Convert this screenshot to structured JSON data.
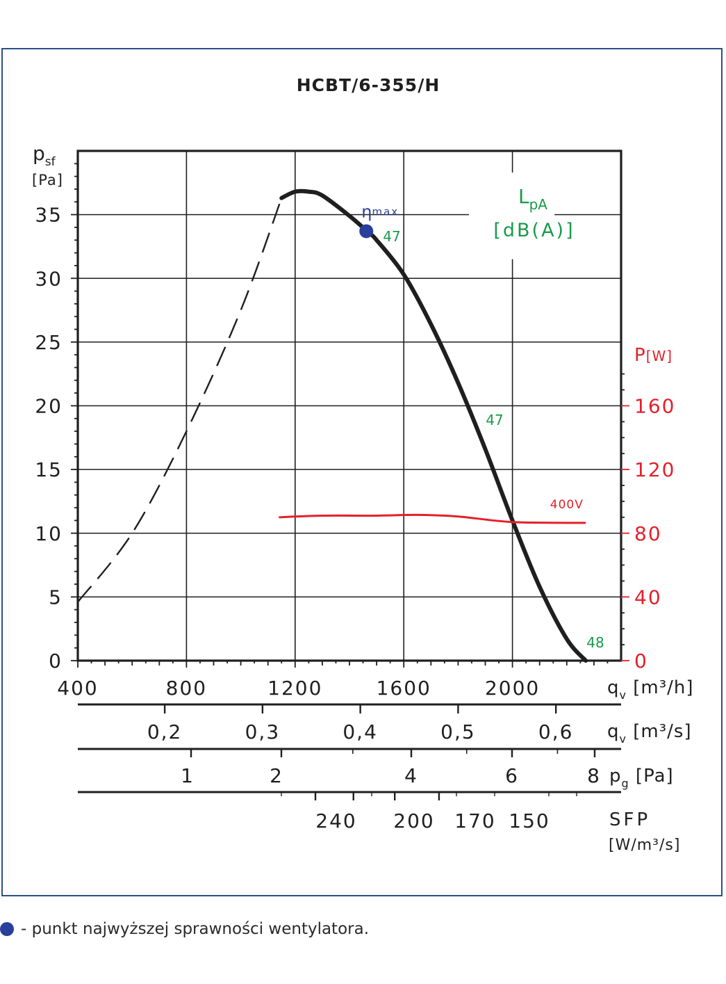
{
  "chart_data": {
    "type": "line",
    "title": "HCBT/6-355/H",
    "x_axis": {
      "label": "q",
      "label_sub": "v",
      "unit": "[m³/h]",
      "range": [
        400,
        2400
      ],
      "ticks": [
        400,
        800,
        1200,
        1600,
        2000
      ],
      "tick_labels": [
        "400",
        "800",
        "1200",
        "1600",
        "2000"
      ]
    },
    "y_axis_left": {
      "label": "p",
      "label_sub": "sf",
      "unit": "[Pa]",
      "range": [
        0,
        40
      ],
      "ticks": [
        0,
        5,
        10,
        15,
        20,
        25,
        30,
        35
      ],
      "tick_labels": [
        "0",
        "5",
        "10",
        "15",
        "20",
        "25",
        "30",
        "35"
      ]
    },
    "y_axis_right": {
      "label": "P",
      "unit": "[W]",
      "range": [
        0,
        320
      ],
      "ticks": [
        0,
        40,
        80,
        120,
        160
      ],
      "tick_labels": [
        "0",
        "40",
        "80",
        "120",
        "160"
      ]
    },
    "secondary_scales": [
      {
        "label": "q",
        "label_sub": "v",
        "unit": "[m³/s]",
        "ticks": [
          0.2,
          0.3,
          0.4,
          0.5,
          0.6
        ],
        "tick_labels": [
          "0,2",
          "0,3",
          "0,4",
          "0,5",
          "0,6"
        ]
      },
      {
        "label": "p",
        "label_sub": "g",
        "unit": "[Pa]",
        "ticks": [
          1,
          2,
          4,
          6,
          8
        ],
        "tick_labels": [
          "1",
          "2",
          "4",
          "6",
          "8"
        ]
      },
      {
        "label": "SFP",
        "unit": "[W/m³/s]",
        "tick_labels": [
          "240",
          "200",
          "170",
          "150"
        ],
        "tick_flows_m3h": [
          1620,
          1760,
          1912,
          2075
        ]
      }
    ],
    "series": [
      {
        "role": "unstable",
        "style": "dashed",
        "x": [
          400,
          600,
          800,
          1000,
          1150
        ],
        "y": [
          4.6,
          10,
          18,
          27.5,
          36.3
        ]
      },
      {
        "role": "pressure",
        "style": "solid",
        "x": [
          1150,
          1200,
          1250,
          1300,
          1400,
          1470,
          1500,
          1600,
          1700,
          1800,
          1900,
          2000,
          2100,
          2200,
          2270
        ],
        "y": [
          36.3,
          36.8,
          36.8,
          36.5,
          34.9,
          33.6,
          33.0,
          30.3,
          26.4,
          21.8,
          16.6,
          11.0,
          5.8,
          1.7,
          0
        ]
      },
      {
        "name": "400V",
        "role": "power",
        "axis": "right",
        "color": "#e4202a",
        "x": [
          1140,
          1300,
          1500,
          1650,
          1800,
          2000,
          2270
        ],
        "y": [
          90,
          91,
          91,
          91.5,
          90.5,
          87,
          86.5
        ]
      }
    ],
    "eta_max": {
      "label": "η",
      "label_sub": "max",
      "x": 1462,
      "y": 33.7,
      "color": "#2a3f9c"
    },
    "sound_level": {
      "title": "L",
      "title_sub": "pA",
      "unit": "[dB(A)]",
      "color": "#1a9a4a",
      "points": [
        {
          "value": "47",
          "x": 1470,
          "y": 33.6
        },
        {
          "value": "47",
          "x": 1885,
          "y": 19.4
        },
        {
          "value": "48",
          "x": 2270,
          "y": 1
        }
      ]
    },
    "grid": true
  },
  "footnote": {
    "text": "- punkt najwyższej sprawności wentylatora."
  }
}
